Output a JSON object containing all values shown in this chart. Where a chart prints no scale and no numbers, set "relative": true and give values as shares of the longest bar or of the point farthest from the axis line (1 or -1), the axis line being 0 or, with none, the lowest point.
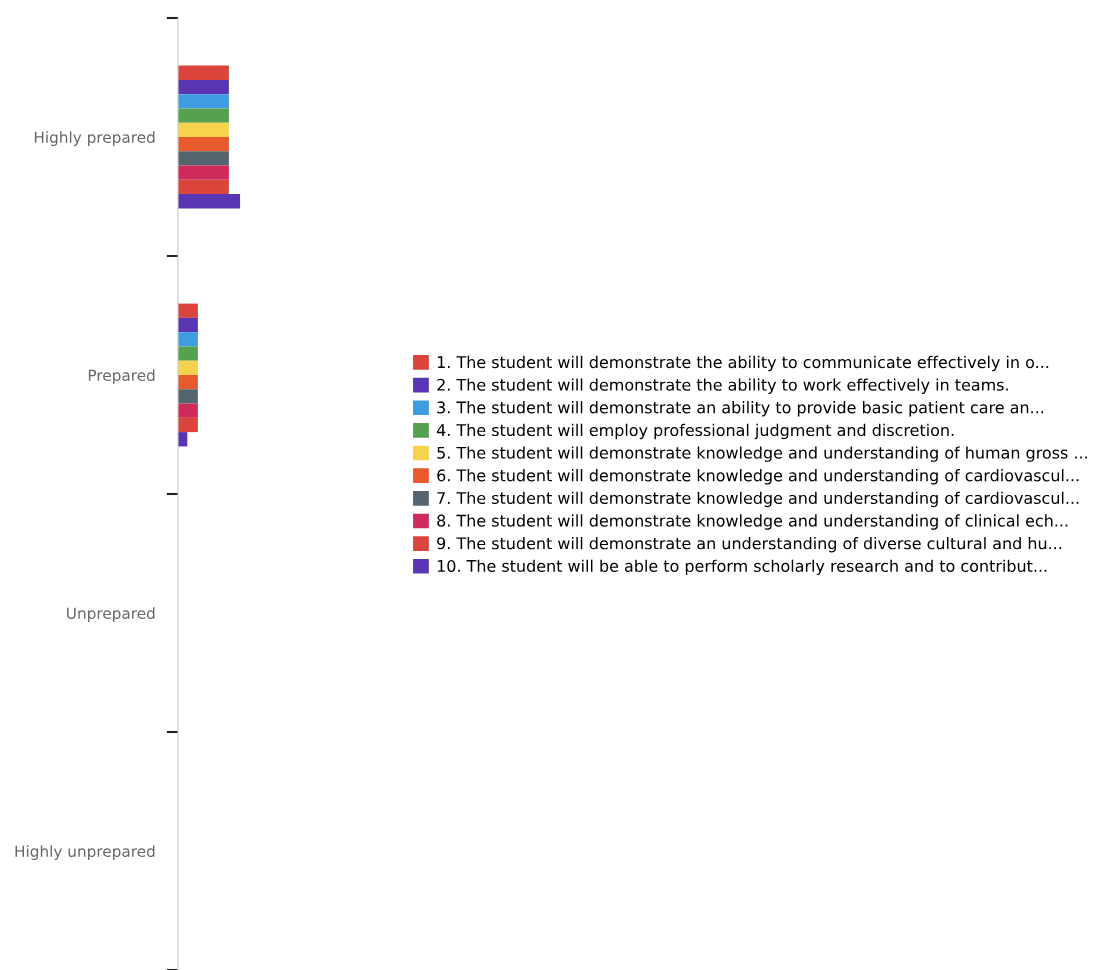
{
  "chart_data": {
    "type": "bar",
    "orientation": "horizontal",
    "relative": true,
    "legend": "right",
    "categories": [
      "Highly prepared",
      "Prepared",
      "Unprepared",
      "Highly unprepared"
    ],
    "series": [
      {
        "name": "1. The student will demonstrate the ability to communicate effectively in o...",
        "color": "#d9453b",
        "values": [
          0.82,
          0.32,
          0,
          0
        ]
      },
      {
        "name": "2. The student will demonstrate the ability to work effectively in teams.",
        "color": "#5a35b3",
        "values": [
          0.82,
          0.32,
          0,
          0
        ]
      },
      {
        "name": "3. The student will demonstrate an ability to provide basic patient care an...",
        "color": "#3f9ce0",
        "values": [
          0.82,
          0.32,
          0,
          0
        ]
      },
      {
        "name": "4. The student will employ professional judgment and discretion.",
        "color": "#56a150",
        "values": [
          0.82,
          0.32,
          0,
          0
        ]
      },
      {
        "name": "5. The student will demonstrate knowledge and understanding of human gross ...",
        "color": "#f6d24d",
        "values": [
          0.82,
          0.32,
          0,
          0
        ]
      },
      {
        "name": "6. The student will demonstrate knowledge and understanding of cardiovascul...",
        "color": "#e65a2d",
        "values": [
          0.82,
          0.32,
          0,
          0
        ]
      },
      {
        "name": "7. The student will demonstrate knowledge and understanding of cardiovascul...",
        "color": "#55656f",
        "values": [
          0.82,
          0.32,
          0,
          0
        ]
      },
      {
        "name": "8. The student will demonstrate knowledge and understanding of clinical ech...",
        "color": "#cf2b5a",
        "values": [
          0.82,
          0.32,
          0,
          0
        ]
      },
      {
        "name": "9. The student will demonstrate an understanding of diverse cultural and hu...",
        "color": "#d9453b",
        "values": [
          0.82,
          0.32,
          0,
          0
        ]
      },
      {
        "name": "10. The student will be able to perform scholarly research and to contribut...",
        "color": "#5a35b3",
        "values": [
          1,
          0.15,
          0,
          0
        ]
      }
    ]
  }
}
